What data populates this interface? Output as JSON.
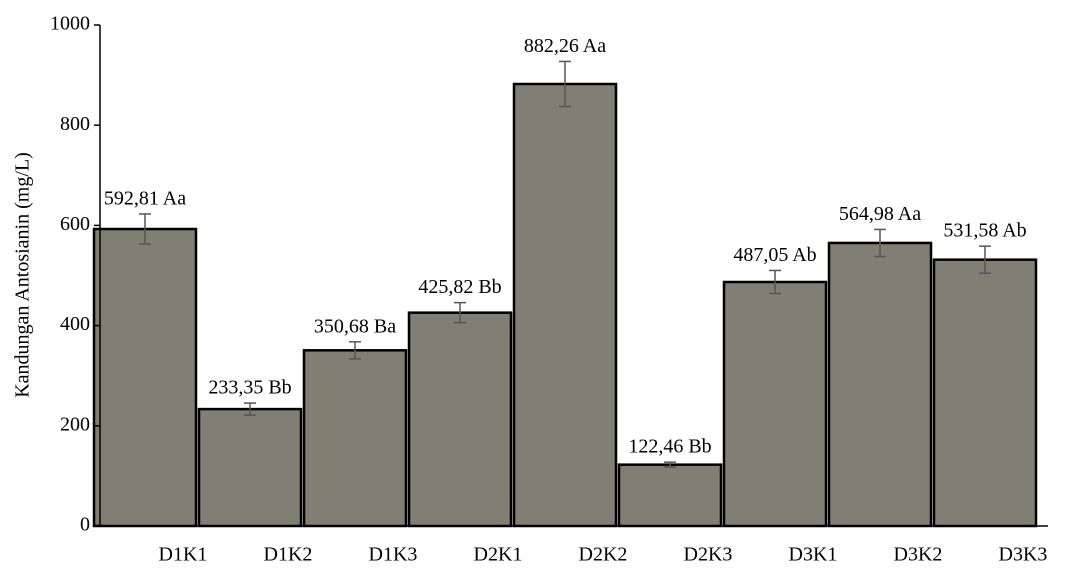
{
  "chart_data": {
    "type": "bar",
    "y_label": "Kandungan Antosianin  (mg/L)",
    "categories": [
      "D1K1",
      "D1K2",
      "D1K3",
      "D2K1",
      "D2K2",
      "D2K3",
      "D3K1",
      "D3K2",
      "D3K3"
    ],
    "values": [
      592.81,
      233.35,
      350.68,
      425.82,
      882.26,
      122.46,
      487.05,
      564.98,
      531.58
    ],
    "value_labels": [
      "592,81 Aa",
      "233,35 Bb",
      "350,68 Ba",
      "425,82 Bb",
      "882,26 Aa",
      "122,46 Bb",
      "487,05 Ab",
      "564,98 Aa",
      "531,58 Ab"
    ],
    "errors": [
      30,
      12,
      17,
      20,
      45,
      5,
      23,
      27,
      27
    ],
    "color": "#807f74",
    "ylim": [
      0,
      1000
    ],
    "yticks": [
      0,
      200,
      400,
      600,
      800,
      1000
    ]
  }
}
